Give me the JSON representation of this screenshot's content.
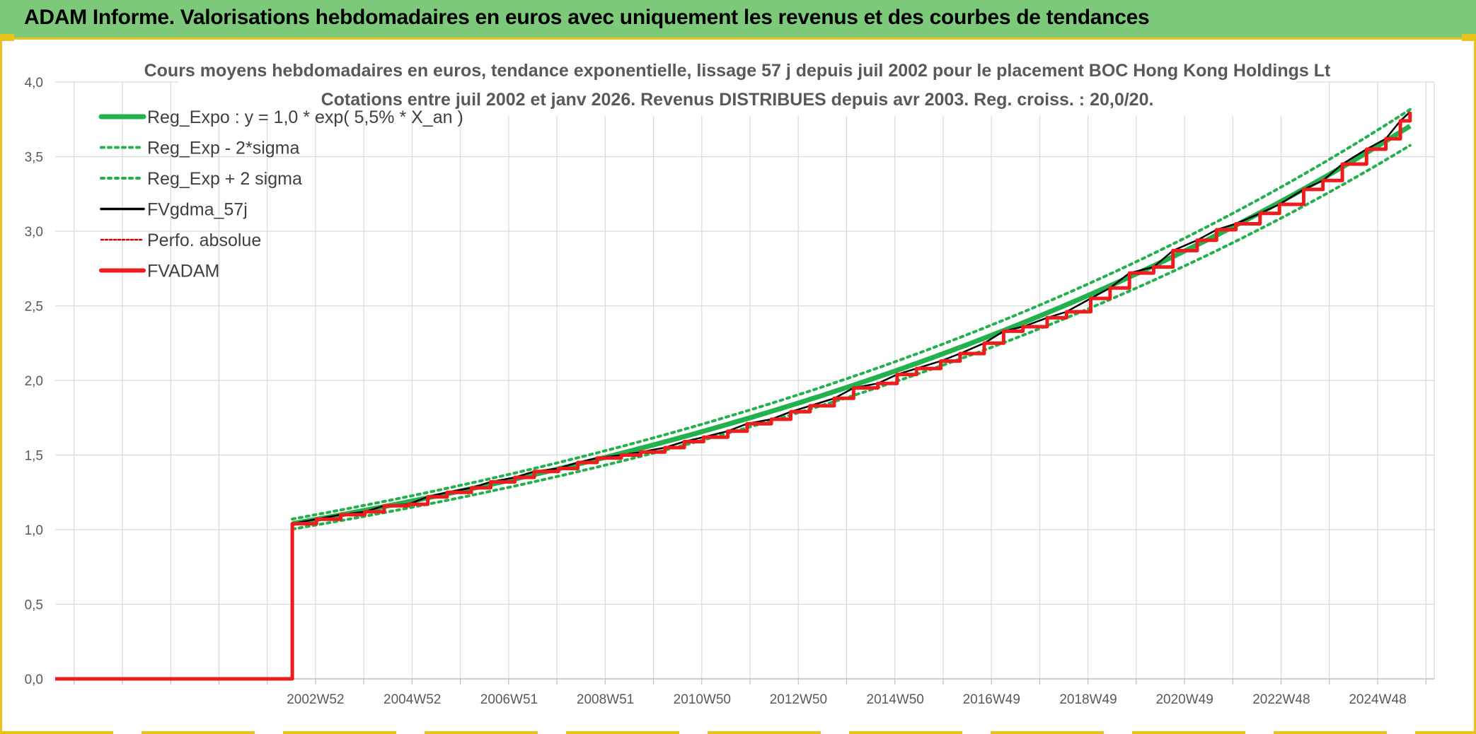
{
  "header": {
    "title": "ADAM Informe. Valorisations hebdomadaires en euros avec uniquement les revenus et des courbes de tendances"
  },
  "colors": {
    "header_bg": "#7dc97a",
    "frame_accent": "#e9c21b",
    "trend": "#22b14c",
    "smoothed": "#000000",
    "adam": "#ee1c1c",
    "perf": "#cc0000",
    "grid": "#d9d9d9"
  },
  "chart_data": {
    "type": "line",
    "title": "Cours moyens hebdomadaires en euros, tendance exponentielle, lissage 57 j depuis juil 2002 pour le placement BOC Hong Kong Holdings Lt",
    "subtitle": "Cotations entre juil 2002 et janv 2026. Revenus DISTRIBUES depuis avr 2003. Reg. croiss. : 20,0/20.",
    "xlabel": "",
    "ylabel": "",
    "ylim": [
      0,
      4.0
    ],
    "xlim": [
      1997.6,
      2026.1
    ],
    "yticks": [
      "0,0",
      "0,5",
      "1,0",
      "1,5",
      "2,0",
      "2,5",
      "3,0",
      "3,5",
      "4,0"
    ],
    "xticks": [
      {
        "label": "2002W52",
        "x": 2002.98
      },
      {
        "label": "2004W52",
        "x": 2004.98
      },
      {
        "label": "2006W51",
        "x": 2006.98
      },
      {
        "label": "2008W51",
        "x": 2008.97
      },
      {
        "label": "2010W50",
        "x": 2010.97
      },
      {
        "label": "2012W50",
        "x": 2012.96
      },
      {
        "label": "2014W50",
        "x": 2014.96
      },
      {
        "label": "2016W49",
        "x": 2016.95
      },
      {
        "label": "2018W49",
        "x": 2018.95
      },
      {
        "label": "2020W49",
        "x": 2020.94
      },
      {
        "label": "2022W48",
        "x": 2022.94
      },
      {
        "label": "2024W48",
        "x": 2024.93
      }
    ],
    "grid": true,
    "legend_position": "top-left",
    "trend": {
      "a": 1.04,
      "rate": 0.055,
      "x0": 2002.5,
      "band_lower": 0.965,
      "band_upper": 1.03
    },
    "series": [
      {
        "name": "Reg_Expo : y = 1,0 * exp( 5,5% *  X_an )",
        "style": "trend",
        "color": "#22b14c"
      },
      {
        "name": "Reg_Exp - 2*sigma",
        "style": "lower-band",
        "color": "#22b14c"
      },
      {
        "name": "Reg_Exp + 2 sigma",
        "style": "upper-band",
        "color": "#22b14c"
      },
      {
        "name": "FVgdma_57j",
        "style": "smoothed",
        "color": "#000000"
      },
      {
        "name": "Perfo. absolue",
        "style": "perf",
        "color": "#cc0000"
      },
      {
        "name": "FVADAM",
        "style": "adam",
        "color": "#ee1c1c",
        "x": [
          1997.6,
          2002.5,
          2002.5,
          2003.0,
          2003.5,
          2004.0,
          2004.4,
          2004.9,
          2005.3,
          2005.7,
          2006.2,
          2006.6,
          2007.1,
          2007.5,
          2008.0,
          2008.4,
          2008.8,
          2009.3,
          2009.7,
          2010.2,
          2010.6,
          2011.0,
          2011.5,
          2011.9,
          2012.4,
          2012.8,
          2013.2,
          2013.7,
          2014.1,
          2014.6,
          2015.0,
          2015.4,
          2015.9,
          2016.3,
          2016.8,
          2017.2,
          2017.6,
          2018.1,
          2018.5,
          2019.0,
          2019.4,
          2019.8,
          2020.3,
          2020.7,
          2021.2,
          2021.6,
          2022.0,
          2022.5,
          2022.9,
          2023.4,
          2023.8,
          2024.2,
          2024.7,
          2025.1,
          2025.4,
          2025.6
        ],
        "y": [
          0.0,
          0.0,
          1.04,
          1.07,
          1.1,
          1.12,
          1.16,
          1.17,
          1.22,
          1.25,
          1.28,
          1.32,
          1.35,
          1.39,
          1.41,
          1.45,
          1.48,
          1.5,
          1.52,
          1.55,
          1.59,
          1.62,
          1.66,
          1.71,
          1.74,
          1.79,
          1.83,
          1.88,
          1.95,
          1.98,
          2.04,
          2.08,
          2.13,
          2.18,
          2.25,
          2.33,
          2.36,
          2.42,
          2.46,
          2.55,
          2.62,
          2.72,
          2.76,
          2.87,
          2.94,
          3.01,
          3.05,
          3.12,
          3.18,
          3.28,
          3.34,
          3.45,
          3.55,
          3.62,
          3.74,
          3.8
        ]
      }
    ]
  }
}
